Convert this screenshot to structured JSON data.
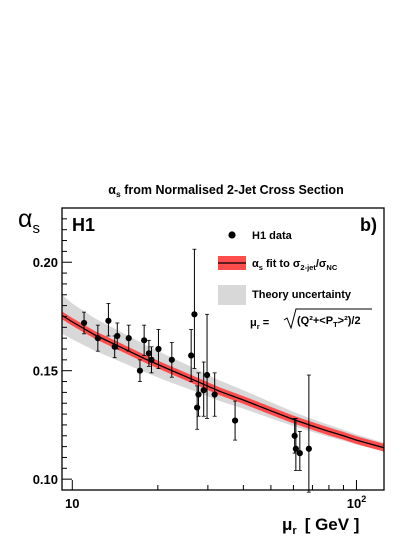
{
  "chart_data": {
    "type": "scatter",
    "title_main": "α",
    "title_sub": "s",
    "title_rest": " from Normalised 2-Jet Cross Section",
    "ylabel_main": "α",
    "ylabel_sub": "s",
    "xlabel_main": "μ",
    "xlabel_sub": "r",
    "xlabel_unit": "[ GeV ]",
    "experiment_label": "H1",
    "panel_label": "b)",
    "x_scale": "log",
    "xlim": [
      9.2,
      125
    ],
    "ylim": [
      0.095,
      0.225
    ],
    "y_ticks": [
      {
        "value": 0.1,
        "label": "0.10"
      },
      {
        "value": 0.15,
        "label": "0.15"
      },
      {
        "value": 0.2,
        "label": "0.20"
      }
    ],
    "x_ticks": [
      {
        "value": 10,
        "label": "10"
      },
      {
        "value": 100,
        "label": "10",
        "exponent": "2"
      }
    ],
    "legend": {
      "placement": "top-right",
      "data_label": "H1 data",
      "fit_main": "α",
      "fit_sub": "s",
      "fit_text": " fit to σ",
      "fit_sub2": "2-jet",
      "fit_slash": "/σ",
      "fit_sub3": "NC",
      "theory_label": "Theory uncertainty",
      "scale_formula_lhs": "μ",
      "scale_formula_sub": "r",
      "scale_formula_rhs": " =",
      "scale_formula_root": "(Q²+<P",
      "scale_formula_root_sub": "T",
      "scale_formula_root_end": ">²)/2"
    },
    "series": [
      {
        "name": "H1 data",
        "points": [
          {
            "x": 11.0,
            "y": 0.172,
            "err_lo": 0.005,
            "err_hi": 0.005
          },
          {
            "x": 12.3,
            "y": 0.165,
            "err_lo": 0.006,
            "err_hi": 0.006
          },
          {
            "x": 13.4,
            "y": 0.173,
            "err_lo": 0.007,
            "err_hi": 0.008
          },
          {
            "x": 14.1,
            "y": 0.161,
            "err_lo": 0.005,
            "err_hi": 0.005
          },
          {
            "x": 14.4,
            "y": 0.166,
            "err_lo": 0.006,
            "err_hi": 0.006
          },
          {
            "x": 15.8,
            "y": 0.165,
            "err_lo": 0.006,
            "err_hi": 0.006
          },
          {
            "x": 17.3,
            "y": 0.15,
            "err_lo": 0.005,
            "err_hi": 0.005
          },
          {
            "x": 17.9,
            "y": 0.164,
            "err_lo": 0.007,
            "err_hi": 0.007
          },
          {
            "x": 18.6,
            "y": 0.158,
            "err_lo": 0.006,
            "err_hi": 0.006
          },
          {
            "x": 19.0,
            "y": 0.155,
            "err_lo": 0.006,
            "err_hi": 0.006
          },
          {
            "x": 20.1,
            "y": 0.16,
            "err_lo": 0.009,
            "err_hi": 0.009
          },
          {
            "x": 22.4,
            "y": 0.155,
            "err_lo": 0.008,
            "err_hi": 0.008
          },
          {
            "x": 26.2,
            "y": 0.157,
            "err_lo": 0.012,
            "err_hi": 0.012
          },
          {
            "x": 26.9,
            "y": 0.176,
            "err_lo": 0.025,
            "err_hi": 0.03
          },
          {
            "x": 27.5,
            "y": 0.133,
            "err_lo": 0.01,
            "err_hi": 0.01
          },
          {
            "x": 27.8,
            "y": 0.139,
            "err_lo": 0.01,
            "err_hi": 0.01
          },
          {
            "x": 29.0,
            "y": 0.141,
            "err_lo": 0.012,
            "err_hi": 0.013
          },
          {
            "x": 29.8,
            "y": 0.148,
            "err_lo": 0.02,
            "err_hi": 0.028
          },
          {
            "x": 31.7,
            "y": 0.139,
            "err_lo": 0.01,
            "err_hi": 0.01
          },
          {
            "x": 37.4,
            "y": 0.127,
            "err_lo": 0.009,
            "err_hi": 0.009
          },
          {
            "x": 60.6,
            "y": 0.12,
            "err_lo": 0.008,
            "err_hi": 0.008
          },
          {
            "x": 61.2,
            "y": 0.114,
            "err_lo": 0.01,
            "err_hi": 0.014
          },
          {
            "x": 63.2,
            "y": 0.112,
            "err_lo": 0.008,
            "err_hi": 0.01
          },
          {
            "x": 68.0,
            "y": 0.114,
            "err_lo": 0.02,
            "err_hi": 0.034
          }
        ]
      }
    ],
    "fit_curve": {
      "name": "αs fit",
      "x": [
        9.2,
        10,
        12,
        15,
        18,
        22,
        27,
        33,
        40,
        50,
        60,
        70,
        80,
        90,
        100,
        110,
        125
      ],
      "y": [
        0.1755,
        0.1725,
        0.1665,
        0.1605,
        0.1555,
        0.1505,
        0.1455,
        0.1405,
        0.1365,
        0.1315,
        0.1275,
        0.1245,
        0.122,
        0.12,
        0.118,
        0.1165,
        0.1145
      ],
      "band_halfwidth": 0.0018
    },
    "theory_band": {
      "x": [
        9.2,
        10,
        12,
        15,
        18,
        22,
        27,
        33,
        40,
        50,
        60,
        70,
        80,
        90,
        100,
        110,
        125
      ],
      "lower": [
        0.167,
        0.1645,
        0.1592,
        0.1538,
        0.1493,
        0.1448,
        0.1405,
        0.136,
        0.1325,
        0.128,
        0.1245,
        0.1218,
        0.1195,
        0.1177,
        0.116,
        0.1146,
        0.1128
      ],
      "upper": [
        0.185,
        0.181,
        0.1742,
        0.1675,
        0.162,
        0.1565,
        0.151,
        0.1455,
        0.141,
        0.1355,
        0.131,
        0.1277,
        0.125,
        0.1228,
        0.1206,
        0.119,
        0.1168
      ]
    },
    "colors": {
      "points": "#000000",
      "fit_line": "#000000",
      "fit_band": "#ff4d4d",
      "theory_band": "#d8d8d8"
    },
    "grid": false
  }
}
